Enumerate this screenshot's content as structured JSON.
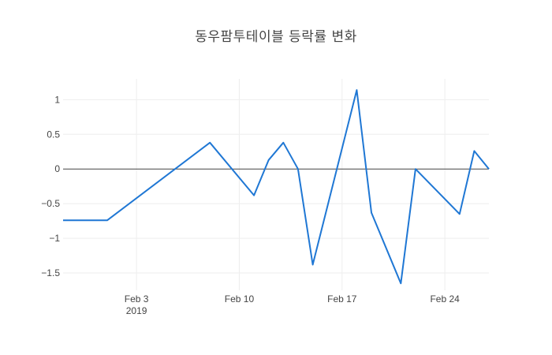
{
  "chart_data": {
    "type": "line",
    "title": "동우팜투테이블 등락률 변화",
    "xlabel": "",
    "ylabel": "",
    "x_ticks": [
      {
        "date": "2019-02-03",
        "label": "Feb 3",
        "sublabel": "2019"
      },
      {
        "date": "2019-02-10",
        "label": "Feb 10",
        "sublabel": ""
      },
      {
        "date": "2019-02-17",
        "label": "Feb 17",
        "sublabel": ""
      },
      {
        "date": "2019-02-24",
        "label": "Feb 24",
        "sublabel": ""
      }
    ],
    "y_ticks": [
      {
        "value": 1,
        "label": "1"
      },
      {
        "value": 0.5,
        "label": "0.5"
      },
      {
        "value": 0,
        "label": "0"
      },
      {
        "value": -0.5,
        "label": "−0.5"
      },
      {
        "value": -1,
        "label": "−1"
      },
      {
        "value": -1.5,
        "label": "−1.5"
      }
    ],
    "xlim": [
      "2019-01-29",
      "2019-02-27"
    ],
    "ylim": [
      -1.75,
      1.3
    ],
    "grid": true,
    "series": [
      {
        "color": "#1f77d4",
        "points": [
          {
            "x": "2019-01-29",
            "y": -0.74
          },
          {
            "x": "2019-02-01",
            "y": -0.74
          },
          {
            "x": "2019-02-08",
            "y": 0.38
          },
          {
            "x": "2019-02-11",
            "y": -0.38
          },
          {
            "x": "2019-02-12",
            "y": 0.13
          },
          {
            "x": "2019-02-13",
            "y": 0.38
          },
          {
            "x": "2019-02-14",
            "y": 0
          },
          {
            "x": "2019-02-15",
            "y": -1.38
          },
          {
            "x": "2019-02-18",
            "y": 1.14
          },
          {
            "x": "2019-02-19",
            "y": -0.63
          },
          {
            "x": "2019-02-21",
            "y": -1.65
          },
          {
            "x": "2019-02-22",
            "y": 0
          },
          {
            "x": "2019-02-25",
            "y": -0.65
          },
          {
            "x": "2019-02-26",
            "y": 0.26
          },
          {
            "x": "2019-02-27",
            "y": 0
          }
        ]
      }
    ]
  }
}
